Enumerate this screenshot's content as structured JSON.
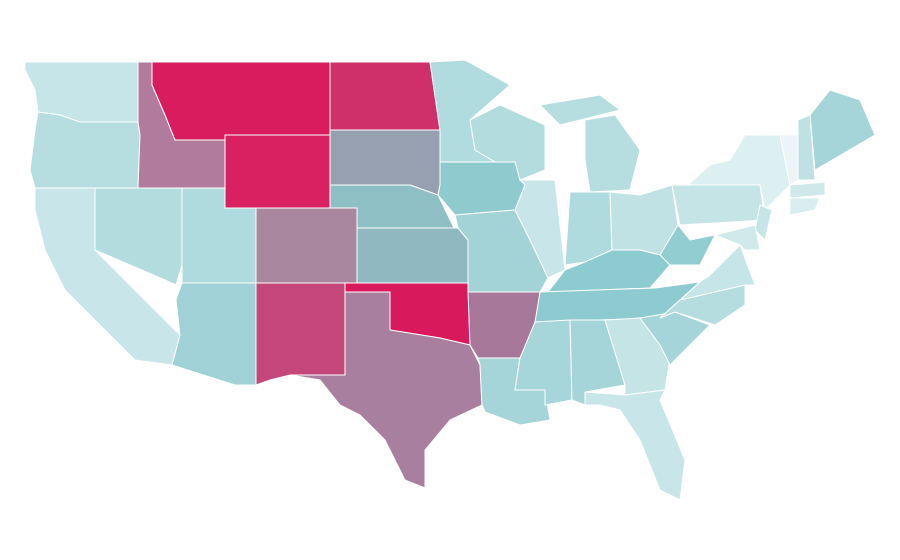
{
  "map": {
    "stroke": "#ffffff",
    "region_fills": [
      "#c5e5e8",
      "#b6dee0",
      "#c8e6e9",
      "#b3dcdf",
      "#b07b9d",
      "#d91c5e",
      "#d92060",
      "#b0dbde",
      "#a8879f",
      "#9fd1d6",
      "#c4477a",
      "#cf306a",
      "#97a0b0",
      "#8dbfc5",
      "#8fb8c1",
      "#d81a5d",
      "#a97f9f",
      "#b1dcdf",
      "#8fcace",
      "#a3d3d7",
      "#a8789a",
      "#a6d5d9",
      "#b3dcdf",
      "#c8e6e9",
      "#b6dee0",
      "#b6dee0",
      "#b0dbde",
      "#c0e2e4",
      "#8ccbd0",
      "#8ecbd0",
      "#a7d6da",
      "#a6d5d9",
      "#c4e4e6",
      "#c8e6e9",
      "#a6d5d9",
      "#b5dde0",
      "#c6e5e8",
      "#92cdd2",
      "#c4e4e6",
      "#dcf0f1",
      "#c5e5e7",
      "#d0eaec",
      "#ecf4f5",
      "#bfe1e4",
      "#a6d5d9",
      "#cfe9eb",
      "#d7edef"
    ]
  }
}
